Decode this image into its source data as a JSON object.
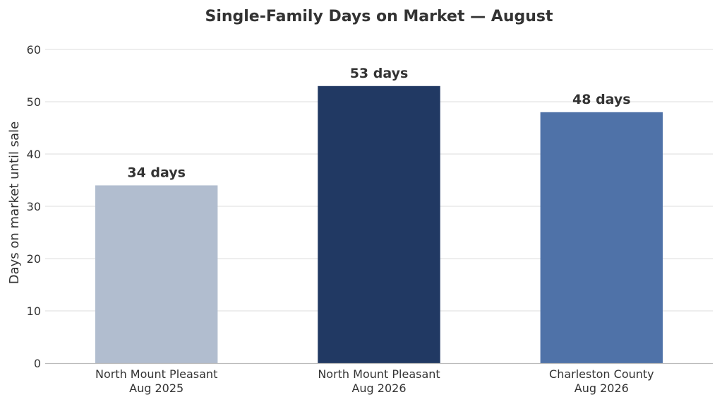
{
  "chart_data": {
    "type": "bar",
    "title": "Single-Family Days on Market — August",
    "xlabel": "",
    "ylabel": "Days on market until sale",
    "ylim": [
      0,
      60
    ],
    "yticks": [
      0,
      10,
      20,
      30,
      40,
      50,
      60
    ],
    "grid": true,
    "categories": [
      [
        "North Mount Pleasant",
        "Aug 2025"
      ],
      [
        "North Mount Pleasant",
        "Aug 2026"
      ],
      [
        "Charleston County",
        "Aug 2026"
      ]
    ],
    "values": [
      34,
      53,
      48
    ],
    "data_labels": [
      "34 days",
      "53 days",
      "48 days"
    ],
    "colors": [
      "#b1bdcf",
      "#213963",
      "#4f72a8"
    ]
  }
}
